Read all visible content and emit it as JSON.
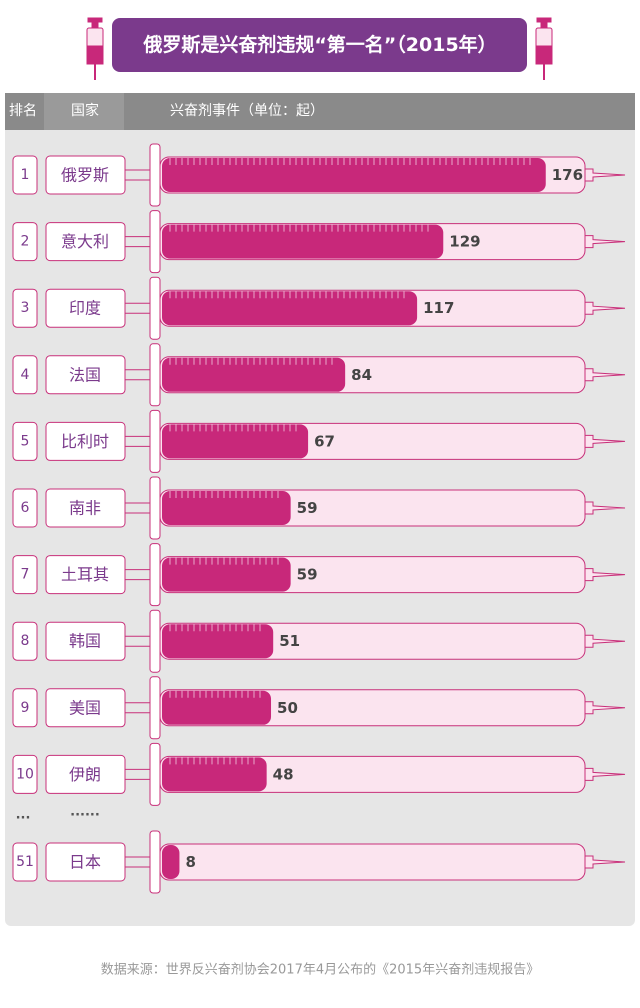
{
  "chart_data": {
    "type": "bar",
    "title": "俄罗斯是兴奋剂违规“第一名”（2015年）",
    "rank_header": "排名",
    "country_header": "国家",
    "value_header": "兴奋剂事件（单位：起）",
    "ranks": [
      "1",
      "2",
      "3",
      "4",
      "5",
      "6",
      "7",
      "8",
      "9",
      "10",
      "51"
    ],
    "categories": [
      "俄罗斯",
      "意大利",
      "印度",
      "法国",
      "比利时",
      "南非",
      "土耳其",
      "韩国",
      "美国",
      "伊朗",
      "日本"
    ],
    "values": [
      176,
      129,
      117,
      84,
      67,
      59,
      59,
      51,
      50,
      48,
      8
    ],
    "gap_rank": "...",
    "gap_country": "......",
    "xlim": [
      0,
      194
    ],
    "color": "#c8287a",
    "source": "数据来源：世界反兴奋剂协会2017年4月公布的《2015年兴奋剂违规报告》"
  }
}
